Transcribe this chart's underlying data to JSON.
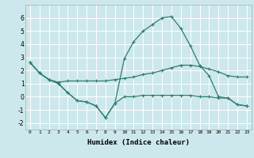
{
  "xlabel": "Humidex (Indice chaleur)",
  "background_color": "#cce8ec",
  "grid_color": "#ffffff",
  "line_color": "#2e7d6e",
  "xlim": [
    -0.5,
    23.5
  ],
  "ylim": [
    -2.5,
    7.0
  ],
  "xticks": [
    0,
    1,
    2,
    3,
    4,
    5,
    6,
    7,
    8,
    9,
    10,
    11,
    12,
    13,
    14,
    15,
    16,
    17,
    18,
    19,
    20,
    21,
    22,
    23
  ],
  "yticks": [
    -2,
    -1,
    0,
    1,
    2,
    3,
    4,
    5,
    6
  ],
  "line1_x": [
    0,
    1,
    2,
    3,
    4,
    5,
    6,
    7,
    8,
    9,
    10,
    11,
    12,
    13,
    14,
    15,
    16,
    17,
    18,
    19,
    20,
    21,
    22,
    23
  ],
  "line1_y": [
    2.6,
    1.8,
    1.3,
    1.0,
    0.3,
    -0.3,
    -0.4,
    -0.7,
    -1.6,
    -0.5,
    0.0,
    0.0,
    0.1,
    0.1,
    0.1,
    0.1,
    0.1,
    0.1,
    0.0,
    0.0,
    -0.1,
    -0.1,
    -0.6,
    -0.7
  ],
  "line2_x": [
    0,
    1,
    2,
    3,
    4,
    5,
    6,
    7,
    8,
    9,
    10,
    11,
    12,
    13,
    14,
    15,
    16,
    17,
    18,
    19,
    20,
    21,
    22,
    23
  ],
  "line2_y": [
    2.6,
    1.8,
    1.3,
    1.1,
    1.2,
    1.2,
    1.2,
    1.2,
    1.2,
    1.3,
    1.4,
    1.5,
    1.7,
    1.8,
    2.0,
    2.2,
    2.4,
    2.4,
    2.3,
    2.1,
    1.9,
    1.6,
    1.5,
    1.5
  ],
  "line3_x": [
    0,
    1,
    2,
    3,
    4,
    5,
    6,
    7,
    8,
    9,
    10,
    11,
    12,
    13,
    14,
    15,
    16,
    17,
    18,
    19,
    20,
    21,
    22,
    23
  ],
  "line3_y": [
    2.6,
    1.8,
    1.3,
    1.0,
    0.3,
    -0.3,
    -0.4,
    -0.7,
    -1.6,
    -0.5,
    2.9,
    4.2,
    5.0,
    5.5,
    6.0,
    6.1,
    5.2,
    3.9,
    2.4,
    1.6,
    0.0,
    -0.1,
    -0.6,
    -0.7
  ]
}
